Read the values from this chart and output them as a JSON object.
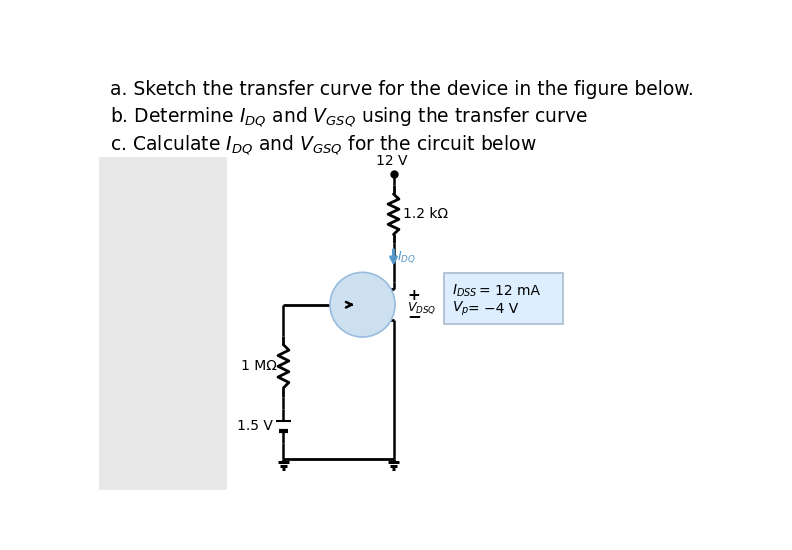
{
  "title_a": "a. Sketch the transfer curve for the device in the figure below.",
  "title_b_pre": "b. Determine I",
  "title_b_sub1": "DQ",
  "title_b_mid": " and V",
  "title_b_sub2": "GSQ",
  "title_b_end": " using the transfer curve",
  "title_c_pre": "c. Calculate I",
  "title_c_sub1": "DQ",
  "title_c_mid": " and V",
  "title_c_sub2": "GSQ",
  "title_c_end": " for the circuit below",
  "vdd": "12 V",
  "r_drain": "1.2 kΩ",
  "r_gate": "1 MΩ",
  "v_source": "1.5 V",
  "idq_label": "I",
  "idq_sub": "DQ",
  "vdsq_label": "V",
  "vdsq_sub": "DSQ",
  "idss_line1": "I",
  "idss_sub": "DSS",
  "idss_val": " = 12 mA",
  "vp_line2": "V",
  "vp_sub": "p",
  "vp_val": " = −4 V",
  "bg_color": "#ffffff",
  "panel_bg": "#e8e8e8",
  "mosfet_circle_color": "#cce0f0",
  "mosfet_circle_edge": "#99bbdd",
  "box_color": "#ddeeff",
  "box_border": "#aabbcc",
  "wire_color": "#000000",
  "arrow_color": "#5599cc",
  "text_color": "#000000"
}
